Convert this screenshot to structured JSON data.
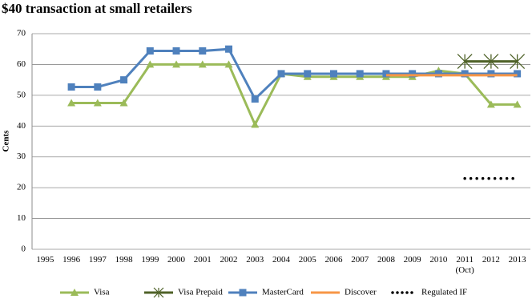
{
  "chart_data": {
    "type": "line",
    "title": "$40 transaction at small retailers",
    "y_label": "Cents",
    "categories": [
      "1995",
      "1996",
      "1997",
      "1998",
      "1999",
      "2000",
      "2001",
      "2002",
      "2003",
      "2004",
      "2005",
      "2006",
      "2007",
      "2008",
      "2009",
      "2010",
      "2011\n(Oct)",
      "2012",
      "2013"
    ],
    "ylim": [
      0,
      70
    ],
    "yticks": [
      0,
      10,
      20,
      30,
      40,
      50,
      60,
      70
    ],
    "grid": true,
    "series": [
      {
        "name": "Visa",
        "color": "#9bbb59",
        "marker": "triangle",
        "values": [
          null,
          47.5,
          47.5,
          47.5,
          60,
          60,
          60,
          60,
          40.5,
          57,
          56,
          56,
          56,
          56,
          56,
          58,
          57,
          47,
          47
        ]
      },
      {
        "name": "Visa Prepaid",
        "color": "#4f6228",
        "marker": "star",
        "values": [
          null,
          null,
          null,
          null,
          null,
          null,
          null,
          null,
          null,
          null,
          null,
          null,
          null,
          null,
          null,
          null,
          61,
          61,
          61
        ]
      },
      {
        "name": "MasterCard",
        "color": "#4f81bd",
        "marker": "square",
        "values": [
          null,
          52.7,
          52.7,
          55,
          64.4,
          64.4,
          64.4,
          65,
          48.8,
          57,
          57,
          57,
          57,
          57,
          57,
          57,
          57,
          57,
          57
        ]
      },
      {
        "name": "Discover",
        "color": "#f79646",
        "marker": "none",
        "values": [
          null,
          null,
          null,
          null,
          null,
          null,
          null,
          null,
          null,
          null,
          null,
          null,
          null,
          56.5,
          56.5,
          56.5,
          56.5,
          56.5,
          56.5
        ]
      },
      {
        "name": "Regulated IF",
        "color": "#000000",
        "marker": "none",
        "dash": "dotted",
        "values": [
          null,
          null,
          null,
          null,
          null,
          null,
          null,
          null,
          null,
          null,
          null,
          null,
          null,
          null,
          null,
          null,
          23,
          23,
          23
        ]
      }
    ]
  }
}
